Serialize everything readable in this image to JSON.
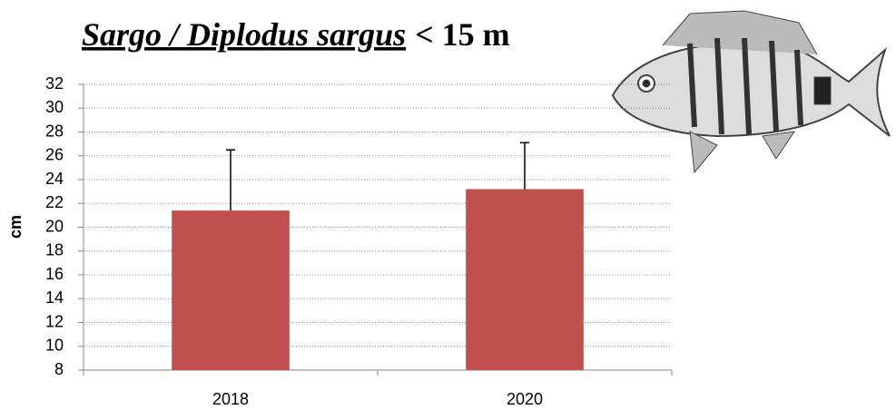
{
  "chart_data": {
    "type": "bar",
    "title": [
      "Sargo / Diplodus sargus",
      "< 15 m"
    ],
    "y_label": "cm",
    "categories": [
      "2018",
      "2020"
    ],
    "values": [
      21.4,
      23.2
    ],
    "errors": [
      5.1,
      3.9
    ],
    "color": "#c0504d",
    "ylim": [
      8,
      32
    ],
    "yticks": [
      8,
      10,
      12,
      14,
      16,
      18,
      20,
      22,
      24,
      26,
      28,
      30,
      32
    ],
    "grid": true
  }
}
